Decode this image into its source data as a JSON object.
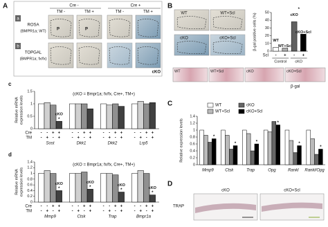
{
  "panel_labels": {
    "A": "A",
    "a": "a",
    "b": "b",
    "c": "c",
    "d": "d",
    "B": "B",
    "C": "C",
    "D": "D"
  },
  "panel_A": {
    "cre_headers": [
      "Cre -",
      "Cre +"
    ],
    "tm_headers": [
      "TM -",
      "TM +",
      "TM -",
      "TM +"
    ],
    "row_a_label": [
      "ROSA",
      "(BMPR1a; WT)"
    ],
    "row_b_label": [
      "TOPGAL",
      "(BMPR1a; fx/fx)"
    ],
    "p_label": "P",
    "cko_label": "cKO"
  },
  "panel_B_images": {
    "top": [
      "WT",
      "WT+Scl"
    ],
    "bottom": [
      "cKO",
      "cKO+Scl"
    ],
    "strip": [
      "WT",
      "WT+Scl",
      "cKO",
      "cKO+Scl"
    ],
    "caption": "β-gal"
  },
  "panel_D": {
    "columns": [
      "cKO",
      "cKO+Scl"
    ],
    "row_label": "TRAP"
  },
  "chart_data": [
    {
      "type": "bar",
      "subtitle": "(cKO = Bmpr1a; fx/fx, Cre+, TM+)",
      "y_label": [
        "Relative mRNA",
        "expression levels"
      ],
      "categories": [
        "Sost",
        "Dkk1",
        "Dkk2",
        "Lrp5"
      ],
      "series": [
        {
          "color": "#ffffff",
          "values": [
            1.0,
            1.0,
            1.0,
            1.0
          ]
        },
        {
          "color": "#d0d0d0",
          "values": [
            1.05,
            1.0,
            0.95,
            1.1
          ]
        },
        {
          "color": "#909090",
          "values": [
            0.95,
            1.0,
            1.0,
            1.0
          ]
        },
        {
          "color": "#404040",
          "values": [
            0.3,
            0.8,
            0.9,
            1.05
          ],
          "bar_labels": [
            "cKO",
            null,
            null,
            null
          ],
          "significance": [
            "*",
            null,
            null,
            null
          ]
        }
      ],
      "ylim": [
        0,
        1.5
      ],
      "yticks": [
        0,
        0.5,
        1,
        1.5
      ],
      "condition_rows": [
        {
          "label": "Cre",
          "signs": [
            "-",
            "-",
            "+",
            "+"
          ]
        },
        {
          "label": "TM",
          "signs": [
            "-",
            "+",
            "-",
            "+"
          ]
        }
      ]
    },
    {
      "type": "bar",
      "subtitle": "(cKO = Bmpr1a; fx/fx, Cre+, TM+)",
      "y_label": [
        "Relative mRNA",
        "expression levels"
      ],
      "categories": [
        "Mmp9",
        "Ctsk",
        "Trap",
        "Bmpr1a"
      ],
      "series": [
        {
          "color": "#ffffff",
          "values": [
            1.0,
            1.0,
            1.0,
            1.0
          ]
        },
        {
          "color": "#d0d0d0",
          "values": [
            1.1,
            1.0,
            1.0,
            1.1
          ]
        },
        {
          "color": "#909090",
          "values": [
            1.0,
            1.05,
            0.95,
            1.0
          ]
        },
        {
          "color": "#404040",
          "values": [
            0.4,
            0.45,
            0.35,
            0.25
          ],
          "bar_labels": [
            "cKO",
            "cKO",
            "cKO",
            "cKO"
          ],
          "significance": [
            "*",
            "*",
            "*",
            "*"
          ]
        }
      ],
      "ylim": [
        0,
        1.4
      ],
      "yticks": [
        0,
        0.2,
        0.4,
        0.6,
        0.8,
        1,
        1.2,
        1.4
      ],
      "condition_rows": [
        {
          "label": "Cre",
          "signs": [
            "-",
            "-",
            "+",
            "+"
          ]
        },
        {
          "label": "TM",
          "signs": [
            "-",
            "+",
            "-",
            "+"
          ]
        }
      ]
    },
    {
      "type": "bar",
      "y_label": "β-gal positive cells (%)",
      "condition_label": "Scl",
      "categories": [
        "-",
        "+",
        "-",
        "+"
      ],
      "groups": [
        "Control",
        "cKO"
      ],
      "values": [
        5,
        4,
        38,
        22
      ],
      "colors": [
        "#ffffff",
        "#b0b0b0",
        "#606060",
        "#000000"
      ],
      "bar_labels": [
        "WT",
        "WT+Scl",
        "cKO",
        "cKO+Scl"
      ],
      "significance": [
        null,
        null,
        "*",
        null
      ],
      "ylim": [
        0,
        50
      ],
      "yticks": [
        0,
        10,
        20,
        30,
        40,
        50
      ]
    },
    {
      "type": "bar",
      "y_label": "Relative expression levels",
      "categories": [
        "Mmp9",
        "Ctsk",
        "Trap",
        "Opg",
        "Rankl",
        "Rankl/Opg"
      ],
      "series": [
        {
          "name": "WT",
          "color": "#ffffff",
          "values": [
            1.0,
            1.0,
            1.0,
            1.0,
            1.0,
            1.0
          ]
        },
        {
          "name": "WT+Scl",
          "color": "#bbbbbb",
          "values": [
            0.85,
            0.85,
            0.9,
            0.95,
            0.7,
            0.75
          ]
        },
        {
          "name": "cKO",
          "color": "#666666",
          "values": [
            0.65,
            0.45,
            0.4,
            1.25,
            0.35,
            0.3
          ]
        },
        {
          "name": "cKO+Scl",
          "color": "#000000",
          "values": [
            0.75,
            0.55,
            0.6,
            1.15,
            0.55,
            0.45
          ],
          "significance": [
            "*",
            "*",
            "*",
            "*",
            "*",
            "*"
          ]
        }
      ],
      "ylim": [
        0,
        1.4
      ],
      "yticks": [
        0,
        0.2,
        0.4,
        0.6,
        0.8,
        1,
        1.2,
        1.4
      ],
      "legend": "top-left"
    }
  ]
}
